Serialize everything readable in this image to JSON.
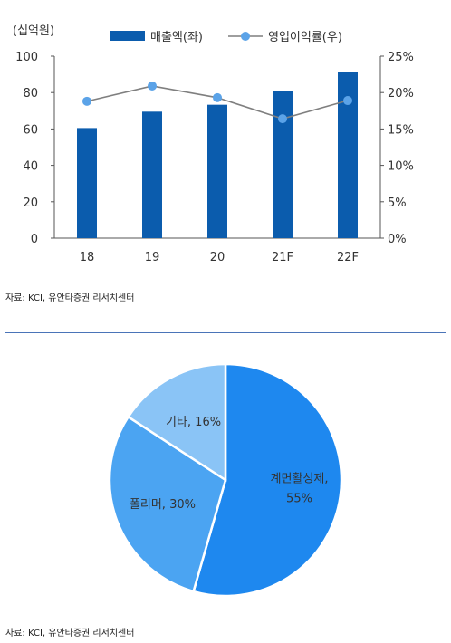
{
  "chart_data": [
    {
      "type": "bar",
      "categories": [
        "18",
        "19",
        "20",
        "21F",
        "22F"
      ],
      "series": [
        {
          "name": "매출액(좌)",
          "kind": "bar",
          "axis": "left",
          "values": [
            60.5,
            69.5,
            73.3,
            80.8,
            91.5
          ],
          "color": "#0b5cad"
        },
        {
          "name": "영업이익률(우)",
          "kind": "line",
          "axis": "right",
          "values": [
            18.8,
            20.9,
            19.3,
            16.4,
            18.9
          ],
          "color": "#5ba3e8",
          "line_color": "#7f7f7f"
        }
      ],
      "yunit": "(십억원)",
      "ylim": [
        0,
        100
      ],
      "yticks": [
        "0",
        "20",
        "40",
        "60",
        "80",
        "100"
      ],
      "y2lim": [
        0,
        25
      ],
      "y2ticks": [
        "0%",
        "5%",
        "10%",
        "15%",
        "20%",
        "25%"
      ],
      "legend": "top",
      "grid": false
    },
    {
      "type": "pie",
      "slices": [
        {
          "label": "계면활성제,",
          "label2": "55%",
          "value": 55,
          "color": "#1e88ef"
        },
        {
          "label": "폴리머, 30%",
          "value": 30,
          "color": "#4ba4f2"
        },
        {
          "label": "기타, 16%",
          "value": 16,
          "color": "#8ac4f6"
        }
      ]
    }
  ],
  "sources": [
    "자료: KCI, 유안타증권 리서치센터",
    "자료: KCI, 유안타증권 리서치센터"
  ]
}
